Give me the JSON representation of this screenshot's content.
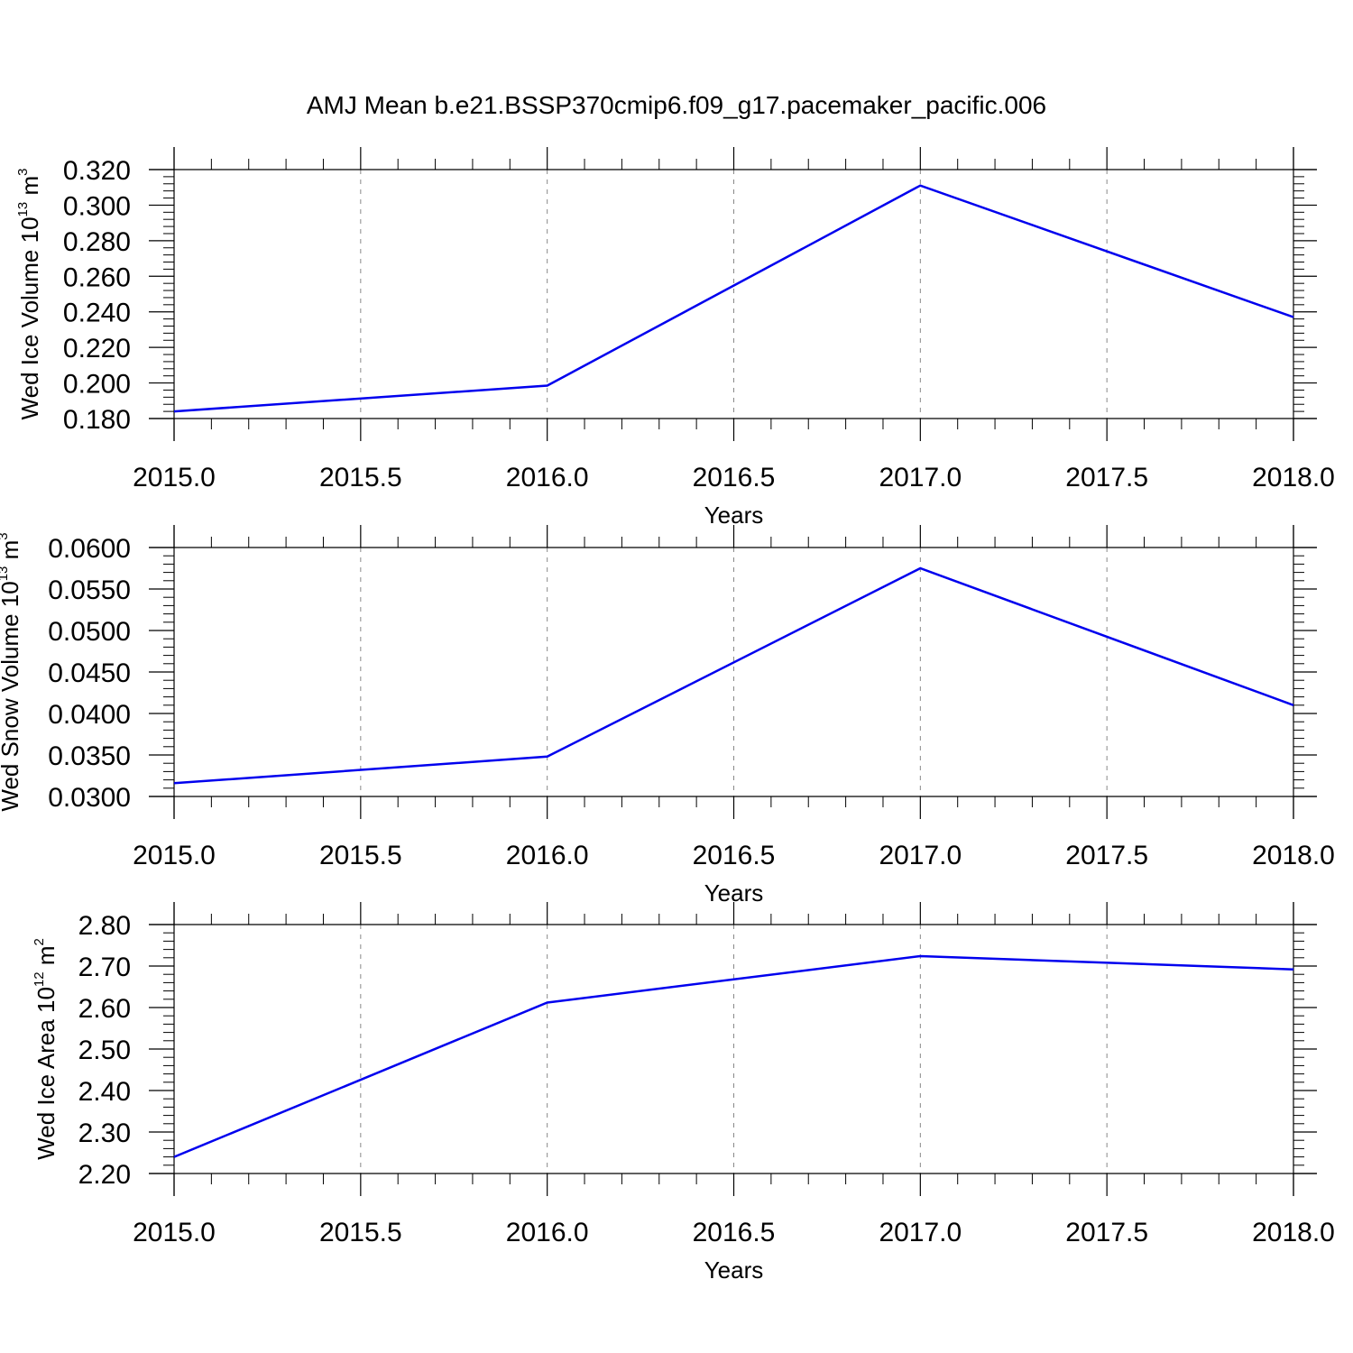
{
  "title": "AMJ Mean b.e21.BSSP370cmip6.f09_g17.pacemaker_pacific.006",
  "chart_data": [
    {
      "type": "line",
      "x": [
        2015.0,
        2016.0,
        2017.0,
        2018.0
      ],
      "series": [
        {
          "values": [
            0.184,
            0.1985,
            0.311,
            0.237
          ],
          "color": "#0000ee"
        }
      ],
      "xlabel": "Years",
      "ylabel": {
        "text": "Wed Ice Volume 10",
        "exponent": "13",
        "unit": "m",
        "unit_exponent": "3"
      },
      "xlim": [
        2015.0,
        2018.0
      ],
      "ylim": [
        0.18,
        0.32
      ],
      "xticks": [
        "2015.0",
        "2015.5",
        "2016.0",
        "2016.5",
        "2017.0",
        "2017.5",
        "2018.0"
      ],
      "yticks": [
        "0.180",
        "0.200",
        "0.220",
        "0.240",
        "0.260",
        "0.280",
        "0.300",
        "0.320"
      ],
      "grid": "vertical dashed"
    },
    {
      "type": "line",
      "x": [
        2015.0,
        2016.0,
        2017.0,
        2018.0
      ],
      "series": [
        {
          "values": [
            0.0316,
            0.0348,
            0.0575,
            0.041
          ],
          "color": "#0000ee"
        }
      ],
      "xlabel": "Years",
      "ylabel": {
        "text": "Wed Snow Volume 10",
        "exponent": "13",
        "unit": "m",
        "unit_exponent": "3"
      },
      "xlim": [
        2015.0,
        2018.0
      ],
      "ylim": [
        0.03,
        0.06
      ],
      "xticks": [
        "2015.0",
        "2015.5",
        "2016.0",
        "2016.5",
        "2017.0",
        "2017.5",
        "2018.0"
      ],
      "yticks": [
        "0.0300",
        "0.0350",
        "0.0400",
        "0.0450",
        "0.0500",
        "0.0550",
        "0.0600"
      ],
      "grid": "vertical dashed"
    },
    {
      "type": "line",
      "x": [
        2015.0,
        2016.0,
        2017.0,
        2018.0
      ],
      "series": [
        {
          "values": [
            2.24,
            2.612,
            2.724,
            2.692
          ],
          "color": "#0000ee"
        }
      ],
      "xlabel": "Years",
      "ylabel": {
        "text": "Wed Ice Area 10",
        "exponent": "12",
        "unit": "m",
        "unit_exponent": "2"
      },
      "xlim": [
        2015.0,
        2018.0
      ],
      "ylim": [
        2.2,
        2.8
      ],
      "xticks": [
        "2015.0",
        "2015.5",
        "2016.0",
        "2016.5",
        "2017.0",
        "2017.5",
        "2018.0"
      ],
      "yticks": [
        "2.20",
        "2.30",
        "2.40",
        "2.50",
        "2.60",
        "2.70",
        "2.80"
      ],
      "grid": "vertical dashed"
    }
  ]
}
